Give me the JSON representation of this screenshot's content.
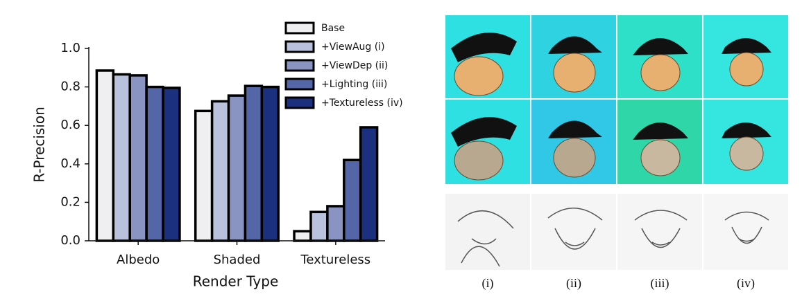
{
  "chart_data": {
    "type": "bar",
    "categories": [
      "Albedo",
      "Shaded",
      "Textureless"
    ],
    "x_label": "Render Type",
    "y_label": "R-Precision",
    "ylim": [
      0,
      1
    ],
    "yticks": [
      {
        "value": 0,
        "label": "0.0"
      },
      0.2,
      0.4,
      0.6,
      0.8,
      {
        "value": 1,
        "label": "1.0"
      }
    ],
    "legend": "upper right",
    "series": [
      {
        "name": "Base",
        "color": "#efeff2",
        "values": [
          0.885,
          0.675,
          0.05
        ]
      },
      {
        "name": "+ViewAug (i)",
        "color": "#b9c1dc",
        "values": [
          0.865,
          0.725,
          0.15
        ]
      },
      {
        "name": "+ViewDep (ii)",
        "color": "#8994c3",
        "values": [
          0.86,
          0.755,
          0.18
        ]
      },
      {
        "name": "+Lighting (iii)",
        "color": "#5566a8",
        "values": [
          0.8,
          0.805,
          0.42
        ]
      },
      {
        "name": "+Textureless (iv)",
        "color": "#1c3080",
        "values": [
          0.795,
          0.8,
          0.59
        ]
      }
    ]
  },
  "panel_labels": [
    "(i)",
    "(ii)",
    "(iii)",
    "(iv)"
  ]
}
